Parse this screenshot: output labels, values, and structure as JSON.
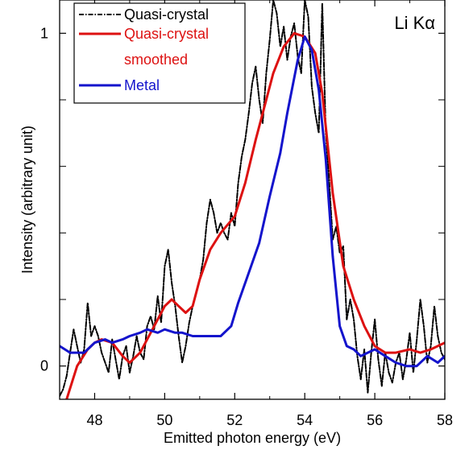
{
  "chart_data": {
    "type": "line",
    "xlabel": "Emitted photon energy (eV)",
    "ylabel": "Intensity (arbitrary unit)",
    "xlim": [
      47,
      58
    ],
    "ylim": [
      -0.1,
      1.1
    ],
    "x_ticks": [
      48,
      50,
      52,
      54,
      56,
      58
    ],
    "y_ticks": [
      0,
      1
    ],
    "y_minor_ticks": [
      0.2,
      0.4,
      0.6,
      0.8
    ],
    "x_minor_ticks": [
      49,
      51,
      53,
      55,
      57
    ],
    "grid": false,
    "annotation": "Li Kα",
    "legend_placement": "top-left",
    "legend": [
      {
        "line1": "Quasi-crystal",
        "line2": "",
        "color": "#000000",
        "dash": "dashdot"
      },
      {
        "line1": "Quasi-crystal",
        "line2": "smoothed",
        "color": "#dd1111",
        "dash": "solid"
      },
      {
        "line1": "Metal",
        "line2": "",
        "color": "#1414cc",
        "dash": "solid"
      }
    ],
    "series": [
      {
        "name": "Quasi-crystal",
        "color": "#000000",
        "dash": "dashdot",
        "x": [
          47.0,
          47.1,
          47.2,
          47.3,
          47.4,
          47.5,
          47.6,
          47.7,
          47.8,
          47.9,
          48.0,
          48.1,
          48.2,
          48.3,
          48.4,
          48.5,
          48.6,
          48.7,
          48.8,
          48.9,
          49.0,
          49.1,
          49.2,
          49.3,
          49.4,
          49.5,
          49.6,
          49.7,
          49.8,
          49.9,
          50.0,
          50.1,
          50.2,
          50.3,
          50.4,
          50.5,
          50.6,
          50.7,
          50.8,
          50.9,
          51.0,
          51.1,
          51.2,
          51.3,
          51.4,
          51.5,
          51.6,
          51.7,
          51.8,
          51.9,
          52.0,
          52.1,
          52.2,
          52.3,
          52.4,
          52.5,
          52.6,
          52.7,
          52.8,
          52.9,
          53.0,
          53.1,
          53.2,
          53.3,
          53.4,
          53.5,
          53.6,
          53.7,
          53.8,
          53.9,
          54.0,
          54.1,
          54.2,
          54.3,
          54.4,
          54.5,
          54.6,
          54.7,
          54.8,
          54.9,
          55.0,
          55.1,
          55.2,
          55.3,
          55.4,
          55.5,
          55.6,
          55.7,
          55.8,
          55.9,
          56.0,
          56.1,
          56.2,
          56.3,
          56.4,
          56.5,
          56.6,
          56.7,
          56.8,
          56.9,
          57.0,
          57.1,
          57.2,
          57.3,
          57.4,
          57.5,
          57.6,
          57.7,
          57.8,
          57.9,
          58.0
        ],
        "y": [
          -0.09,
          -0.07,
          -0.03,
          0.04,
          0.11,
          0.06,
          0.01,
          0.05,
          0.19,
          0.09,
          0.12,
          0.09,
          0.04,
          0.01,
          -0.02,
          0.08,
          0.02,
          -0.04,
          0.03,
          0.06,
          -0.02,
          0.03,
          0.09,
          0.04,
          0.02,
          0.12,
          0.15,
          0.11,
          0.21,
          0.13,
          0.3,
          0.35,
          0.25,
          0.18,
          0.09,
          0.01,
          0.06,
          0.13,
          0.18,
          0.22,
          0.26,
          0.32,
          0.43,
          0.5,
          0.46,
          0.4,
          0.43,
          0.4,
          0.38,
          0.46,
          0.42,
          0.55,
          0.63,
          0.68,
          0.76,
          0.85,
          0.9,
          0.8,
          0.73,
          0.88,
          0.98,
          1.1,
          1.06,
          0.96,
          1.02,
          0.92,
          0.99,
          1.03,
          0.93,
          0.88,
          1.1,
          1.05,
          0.84,
          0.76,
          0.7,
          1.09,
          0.7,
          0.55,
          0.38,
          0.42,
          0.34,
          0.36,
          0.14,
          0.2,
          0.14,
          0.03,
          -0.04,
          0.05,
          -0.08,
          0.04,
          0.14,
          0.02,
          -0.06,
          0.04,
          -0.02,
          -0.05,
          0.01,
          0.04,
          -0.04,
          0.02,
          0.1,
          -0.02,
          0.08,
          0.2,
          0.12,
          0.01,
          0.06,
          0.18,
          0.09,
          0.04,
          0.02
        ]
      },
      {
        "name": "Quasi-crystal smoothed",
        "color": "#dd1111",
        "dash": "solid",
        "x": [
          47.2,
          47.5,
          47.8,
          48.0,
          48.2,
          48.5,
          48.8,
          49.0,
          49.3,
          49.6,
          49.8,
          50.0,
          50.2,
          50.4,
          50.6,
          50.8,
          51.0,
          51.3,
          51.6,
          52.0,
          52.3,
          52.6,
          52.9,
          53.1,
          53.4,
          53.7,
          54.0,
          54.3,
          54.5,
          54.8,
          55.1,
          55.4,
          55.7,
          56.0,
          56.3,
          56.6,
          57.0,
          57.3,
          57.6,
          58.0
        ],
        "y": [
          -0.1,
          0.0,
          0.05,
          0.07,
          0.08,
          0.07,
          0.03,
          0.01,
          0.04,
          0.1,
          0.14,
          0.18,
          0.2,
          0.18,
          0.16,
          0.18,
          0.26,
          0.35,
          0.4,
          0.45,
          0.55,
          0.68,
          0.8,
          0.88,
          0.96,
          1.0,
          0.99,
          0.94,
          0.82,
          0.52,
          0.3,
          0.2,
          0.12,
          0.06,
          0.04,
          0.04,
          0.05,
          0.04,
          0.05,
          0.07
        ]
      },
      {
        "name": "Metal",
        "color": "#1414cc",
        "dash": "solid",
        "x": [
          47.0,
          47.3,
          47.5,
          47.7,
          48.0,
          48.3,
          48.5,
          48.8,
          49.0,
          49.3,
          49.5,
          49.8,
          50.0,
          50.3,
          50.5,
          50.8,
          51.0,
          51.3,
          51.6,
          51.9,
          52.1,
          52.4,
          52.7,
          53.0,
          53.3,
          53.5,
          53.8,
          54.0,
          54.2,
          54.4,
          54.6,
          54.8,
          55.0,
          55.2,
          55.4,
          55.6,
          55.8,
          56.0,
          56.3,
          56.6,
          56.9,
          57.2,
          57.5,
          57.8,
          58.0
        ],
        "y": [
          0.06,
          0.04,
          0.04,
          0.04,
          0.07,
          0.08,
          0.07,
          0.08,
          0.09,
          0.1,
          0.11,
          0.1,
          0.11,
          0.1,
          0.1,
          0.09,
          0.09,
          0.09,
          0.09,
          0.12,
          0.19,
          0.28,
          0.37,
          0.51,
          0.64,
          0.76,
          0.92,
          0.99,
          0.95,
          0.83,
          0.62,
          0.33,
          0.12,
          0.06,
          0.05,
          0.03,
          0.04,
          0.05,
          0.03,
          0.01,
          0.0,
          0.0,
          0.03,
          0.01,
          0.03
        ]
      }
    ]
  }
}
